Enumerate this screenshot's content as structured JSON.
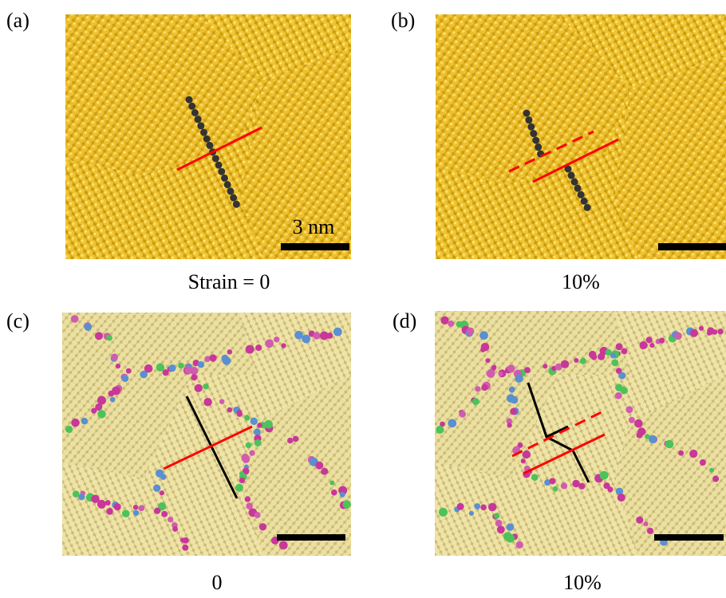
{
  "panels": [
    {
      "label": "(a)",
      "caption": "Strain = 0",
      "scale_label": "3 nm"
    },
    {
      "label": "(b)",
      "caption": "10%"
    },
    {
      "label": "(c)",
      "caption": "0"
    },
    {
      "label": "(d)",
      "caption": "10%"
    }
  ]
}
